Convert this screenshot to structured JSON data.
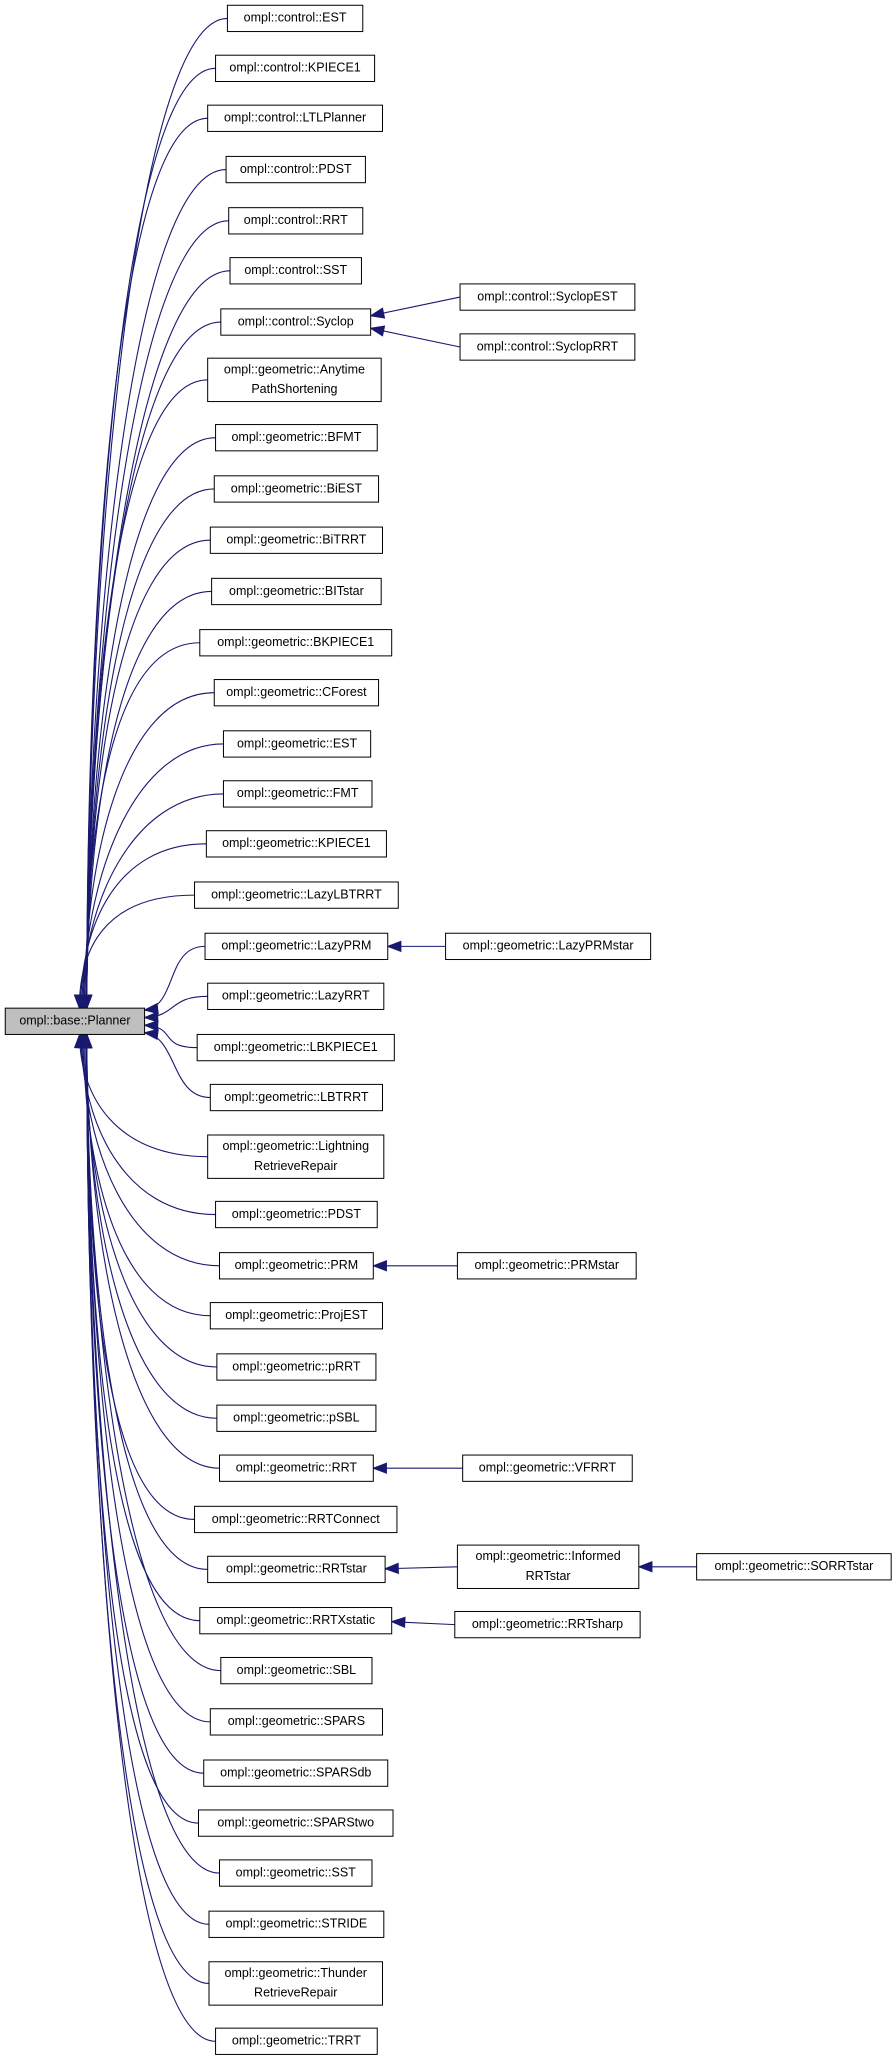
{
  "root": "ompl::base::Planner",
  "nodes": [
    {
      "lines": [
        "ompl::control::EST"
      ]
    },
    {
      "lines": [
        "ompl::control::KPIECE1"
      ]
    },
    {
      "lines": [
        "ompl::control::LTLPlanner"
      ]
    },
    {
      "lines": [
        "ompl::control::PDST"
      ]
    },
    {
      "lines": [
        "ompl::control::RRT"
      ]
    },
    {
      "lines": [
        "ompl::control::SST"
      ]
    },
    {
      "lines": [
        "ompl::control::Syclop"
      ]
    },
    {
      "lines": [
        "ompl::geometric::Anytime",
        "PathShortening"
      ]
    },
    {
      "lines": [
        "ompl::geometric::BFMT"
      ]
    },
    {
      "lines": [
        "ompl::geometric::BiEST"
      ]
    },
    {
      "lines": [
        "ompl::geometric::BiTRRT"
      ]
    },
    {
      "lines": [
        "ompl::geometric::BITstar"
      ]
    },
    {
      "lines": [
        "ompl::geometric::BKPIECE1"
      ]
    },
    {
      "lines": [
        "ompl::geometric::CForest"
      ]
    },
    {
      "lines": [
        "ompl::geometric::EST"
      ]
    },
    {
      "lines": [
        "ompl::geometric::FMT"
      ]
    },
    {
      "lines": [
        "ompl::geometric::KPIECE1"
      ]
    },
    {
      "lines": [
        "ompl::geometric::LazyLBTRRT"
      ]
    },
    {
      "lines": [
        "ompl::geometric::LazyPRM"
      ]
    },
    {
      "lines": [
        "ompl::geometric::LazyRRT"
      ]
    },
    {
      "lines": [
        "ompl::geometric::LBKPIECE1"
      ]
    },
    {
      "lines": [
        "ompl::geometric::LBTRRT"
      ]
    },
    {
      "lines": [
        "ompl::geometric::Lightning",
        "RetrieveRepair"
      ]
    },
    {
      "lines": [
        "ompl::geometric::PDST"
      ]
    },
    {
      "lines": [
        "ompl::geometric::PRM"
      ]
    },
    {
      "lines": [
        "ompl::geometric::ProjEST"
      ]
    },
    {
      "lines": [
        "ompl::geometric::pRRT"
      ]
    },
    {
      "lines": [
        "ompl::geometric::pSBL"
      ]
    },
    {
      "lines": [
        "ompl::geometric::RRT"
      ]
    },
    {
      "lines": [
        "ompl::geometric::RRTConnect"
      ]
    },
    {
      "lines": [
        "ompl::geometric::RRTstar"
      ]
    },
    {
      "lines": [
        "ompl::geometric::RRTXstatic"
      ]
    },
    {
      "lines": [
        "ompl::geometric::SBL"
      ]
    },
    {
      "lines": [
        "ompl::geometric::SPARS"
      ]
    },
    {
      "lines": [
        "ompl::geometric::SPARSdb"
      ]
    },
    {
      "lines": [
        "ompl::geometric::SPARStwo"
      ]
    },
    {
      "lines": [
        "ompl::geometric::SST"
      ]
    },
    {
      "lines": [
        "ompl::geometric::STRIDE"
      ]
    },
    {
      "lines": [
        "ompl::geometric::Thunder",
        "RetrieveRepair"
      ]
    },
    {
      "lines": [
        "ompl::geometric::TRRT"
      ]
    },
    {
      "lines": [
        "ompl::control::SyclopEST"
      ]
    },
    {
      "lines": [
        "ompl::control::SyclopRRT"
      ]
    },
    {
      "lines": [
        "ompl::geometric::LazyPRMstar"
      ]
    },
    {
      "lines": [
        "ompl::geometric::PRMstar"
      ]
    },
    {
      "lines": [
        "ompl::geometric::VFRRT"
      ]
    },
    {
      "lines": [
        "ompl::geometric::Informed",
        "RRTstar"
      ]
    },
    {
      "lines": [
        "ompl::geometric::RRTsharp"
      ]
    },
    {
      "lines": [
        "ompl::geometric::SORRTstar"
      ]
    }
  ]
}
